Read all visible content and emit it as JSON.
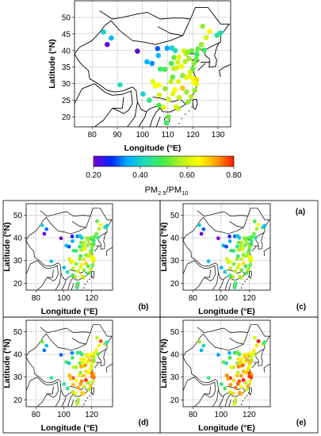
{
  "colorbar": {
    "label": "PM2.5/PM10",
    "label_main": "PM",
    "label_sub1": "2.5",
    "label_mid": "/PM",
    "label_sub2": "10",
    "range": [
      0.2,
      0.8
    ],
    "tick_labels": [
      "0.20",
      "0.40",
      "0.60",
      "0.80"
    ],
    "ticks": [
      0.2,
      0.4,
      0.6,
      0.8
    ],
    "colors": [
      "#7a00d0",
      "#0028ff",
      "#00b4ff",
      "#22e0b0",
      "#44ee44",
      "#b8f020",
      "#ffff00",
      "#ffa000",
      "#ff1800"
    ]
  },
  "chart_data": [
    {
      "type": "scatter",
      "panel_label": "(a)",
      "xlabel": "Longitude (°E)",
      "ylabel": "Latitude (°N)",
      "xlim": [
        73,
        135
      ],
      "ylim": [
        17,
        55
      ],
      "xticks": [
        80,
        90,
        100,
        110,
        120,
        130
      ],
      "yticks": [
        20,
        25,
        30,
        35,
        40,
        45,
        50
      ],
      "xtick_labels": [
        "80",
        "90",
        "100",
        "110",
        "120",
        "130"
      ],
      "ytick_labels": [
        "20",
        "25",
        "30",
        "35",
        "40",
        "45",
        "50"
      ],
      "grid": true,
      "points": [
        {
          "lon": 84.5,
          "lat": 45.6,
          "value": 0.4
        },
        {
          "lon": 87.6,
          "lat": 43.8,
          "value": 0.35
        },
        {
          "lon": 86.0,
          "lat": 41.8,
          "value": 0.22
        },
        {
          "lon": 91.1,
          "lat": 29.7,
          "value": 0.42
        },
        {
          "lon": 98.0,
          "lat": 39.8,
          "value": 0.22
        },
        {
          "lon": 101.8,
          "lat": 36.6,
          "value": 0.35
        },
        {
          "lon": 103.8,
          "lat": 36.1,
          "value": 0.33
        },
        {
          "lon": 106.3,
          "lat": 38.5,
          "value": 0.36
        },
        {
          "lon": 106.0,
          "lat": 40.6,
          "value": 0.3
        },
        {
          "lon": 109.8,
          "lat": 40.7,
          "value": 0.34
        },
        {
          "lon": 111.7,
          "lat": 40.8,
          "value": 0.4
        },
        {
          "lon": 113.0,
          "lat": 40.0,
          "value": 0.42
        },
        {
          "lon": 112.5,
          "lat": 37.9,
          "value": 0.52
        },
        {
          "lon": 116.4,
          "lat": 39.9,
          "value": 0.6
        },
        {
          "lon": 117.2,
          "lat": 39.1,
          "value": 0.58
        },
        {
          "lon": 114.5,
          "lat": 38.0,
          "value": 0.62
        },
        {
          "lon": 118.1,
          "lat": 39.6,
          "value": 0.55
        },
        {
          "lon": 119.6,
          "lat": 39.9,
          "value": 0.52
        },
        {
          "lon": 117.0,
          "lat": 36.7,
          "value": 0.57
        },
        {
          "lon": 120.4,
          "lat": 36.1,
          "value": 0.55
        },
        {
          "lon": 121.4,
          "lat": 37.5,
          "value": 0.52
        },
        {
          "lon": 123.4,
          "lat": 41.8,
          "value": 0.55
        },
        {
          "lon": 121.6,
          "lat": 38.9,
          "value": 0.48
        },
        {
          "lon": 125.3,
          "lat": 43.9,
          "value": 0.6
        },
        {
          "lon": 126.6,
          "lat": 45.8,
          "value": 0.65
        },
        {
          "lon": 123.9,
          "lat": 47.3,
          "value": 0.55
        },
        {
          "lon": 129.6,
          "lat": 44.6,
          "value": 0.45
        },
        {
          "lon": 131.0,
          "lat": 45.3,
          "value": 0.42
        },
        {
          "lon": 113.6,
          "lat": 34.8,
          "value": 0.6
        },
        {
          "lon": 112.4,
          "lat": 34.6,
          "value": 0.58
        },
        {
          "lon": 108.9,
          "lat": 34.3,
          "value": 0.5
        },
        {
          "lon": 107.1,
          "lat": 34.4,
          "value": 0.48
        },
        {
          "lon": 111.5,
          "lat": 36.1,
          "value": 0.5
        },
        {
          "lon": 114.3,
          "lat": 30.6,
          "value": 0.62
        },
        {
          "lon": 112.9,
          "lat": 28.2,
          "value": 0.64
        },
        {
          "lon": 118.8,
          "lat": 32.1,
          "value": 0.62
        },
        {
          "lon": 120.3,
          "lat": 31.6,
          "value": 0.65
        },
        {
          "lon": 121.5,
          "lat": 31.2,
          "value": 0.68
        },
        {
          "lon": 120.2,
          "lat": 30.3,
          "value": 0.65
        },
        {
          "lon": 117.3,
          "lat": 31.9,
          "value": 0.63
        },
        {
          "lon": 115.9,
          "lat": 28.7,
          "value": 0.7
        },
        {
          "lon": 121.5,
          "lat": 29.9,
          "value": 0.62
        },
        {
          "lon": 120.7,
          "lat": 28.0,
          "value": 0.55
        },
        {
          "lon": 119.3,
          "lat": 26.1,
          "value": 0.58
        },
        {
          "lon": 118.1,
          "lat": 24.5,
          "value": 0.55
        },
        {
          "lon": 113.3,
          "lat": 23.1,
          "value": 0.62
        },
        {
          "lon": 114.1,
          "lat": 22.5,
          "value": 0.58
        },
        {
          "lon": 110.3,
          "lat": 20.0,
          "value": 0.52
        },
        {
          "lon": 110.3,
          "lat": 25.3,
          "value": 0.6
        },
        {
          "lon": 108.4,
          "lat": 22.8,
          "value": 0.62
        },
        {
          "lon": 106.7,
          "lat": 26.6,
          "value": 0.6
        },
        {
          "lon": 102.7,
          "lat": 25.0,
          "value": 0.45
        },
        {
          "lon": 104.1,
          "lat": 30.7,
          "value": 0.62
        },
        {
          "lon": 106.5,
          "lat": 29.6,
          "value": 0.65
        },
        {
          "lon": 105.0,
          "lat": 29.3,
          "value": 0.64
        },
        {
          "lon": 109.5,
          "lat": 18.2,
          "value": 0.48
        },
        {
          "lon": 100.2,
          "lat": 26.9,
          "value": 0.4
        },
        {
          "lon": 111.3,
          "lat": 30.7,
          "value": 0.58
        },
        {
          "lon": 115.5,
          "lat": 35.2,
          "value": 0.63
        },
        {
          "lon": 119.0,
          "lat": 33.5,
          "value": 0.6
        },
        {
          "lon": 116.0,
          "lat": 32.5,
          "value": 0.55
        },
        {
          "lon": 112.0,
          "lat": 32.0,
          "value": 0.52
        },
        {
          "lon": 109.0,
          "lat": 28.5,
          "value": 0.55
        },
        {
          "lon": 117.5,
          "lat": 27.5,
          "value": 0.55
        },
        {
          "lon": 120.0,
          "lat": 34.5,
          "value": 0.52
        },
        {
          "lon": 118.5,
          "lat": 37.5,
          "value": 0.56
        },
        {
          "lon": 114.0,
          "lat": 36.5,
          "value": 0.6
        },
        {
          "lon": 112.0,
          "lat": 27.0,
          "value": 0.62
        },
        {
          "lon": 114.5,
          "lat": 25.8,
          "value": 0.58
        },
        {
          "lon": 106.5,
          "lat": 23.5,
          "value": 0.5
        },
        {
          "lon": 122.0,
          "lat": 40.5,
          "value": 0.52
        },
        {
          "lon": 124.5,
          "lat": 40.1,
          "value": 0.48
        }
      ]
    },
    {
      "type": "scatter",
      "panel_label": "(b)",
      "xlabel": "Longitude (°E)",
      "ylabel": "Latitude (°N)",
      "xlim": [
        73,
        135
      ],
      "ylim": [
        17,
        55
      ],
      "xticks": [
        80,
        100,
        120
      ],
      "yticks": [
        20,
        30,
        40,
        50
      ],
      "xtick_labels": [
        "80",
        "100",
        "120"
      ],
      "ytick_labels": [
        "20",
        "30",
        "40",
        "50"
      ],
      "grid": true,
      "value_shift": -0.02
    },
    {
      "type": "scatter",
      "panel_label": "(c)",
      "xlabel": "Longitude (°E)",
      "ylabel": "Latitude (°N)",
      "xlim": [
        73,
        135
      ],
      "ylim": [
        17,
        55
      ],
      "xticks": [
        80,
        100,
        120
      ],
      "yticks": [
        20,
        30,
        40,
        50
      ],
      "xtick_labels": [
        "80",
        "100",
        "120"
      ],
      "ytick_labels": [
        "20",
        "30",
        "40",
        "50"
      ],
      "grid": true,
      "value_shift": -0.03
    },
    {
      "type": "scatter",
      "panel_label": "(d)",
      "xlabel": "Longitude (°E)",
      "ylabel": "Latitude (°N)",
      "xlim": [
        73,
        135
      ],
      "ylim": [
        17,
        55
      ],
      "xticks": [
        80,
        100,
        120
      ],
      "yticks": [
        20,
        30,
        40,
        50
      ],
      "xtick_labels": [
        "80",
        "100",
        "120"
      ],
      "ytick_labels": [
        "20",
        "30",
        "40",
        "50"
      ],
      "grid": true,
      "value_shift": 0.07
    },
    {
      "type": "scatter",
      "panel_label": "(e)",
      "xlabel": "Longitude (°E)",
      "ylabel": "Latitude (°N)",
      "xlim": [
        73,
        135
      ],
      "ylim": [
        17,
        55
      ],
      "xticks": [
        80,
        100,
        120
      ],
      "yticks": [
        20,
        30,
        40,
        50
      ],
      "xtick_labels": [
        "80",
        "100",
        "120"
      ],
      "ytick_labels": [
        "20",
        "30",
        "40",
        "50"
      ],
      "grid": true,
      "value_shift": 0.1
    }
  ]
}
